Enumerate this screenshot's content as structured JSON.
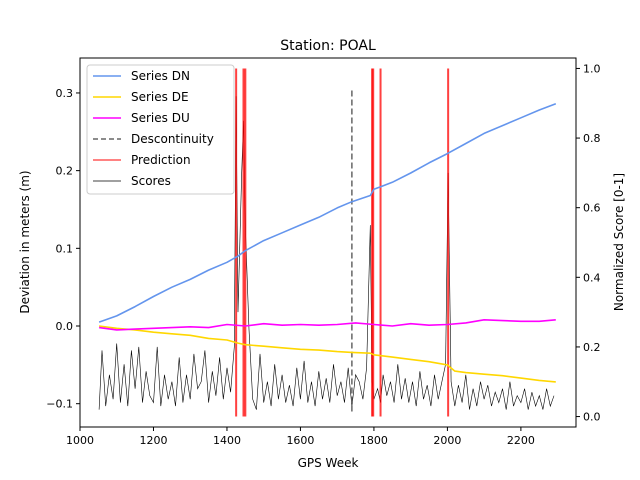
{
  "chart_data": {
    "type": "line",
    "title": "Station: POAL",
    "xlabel": "GPS Week",
    "ylabel": "Deviation in meters (m)",
    "y2label": "Normalized Score [0-1]",
    "xlim": [
      1000,
      2350
    ],
    "ylim": [
      -0.13,
      0.345
    ],
    "y2lim": [
      -0.03,
      1.03
    ],
    "xticks": [
      1000,
      1200,
      1400,
      1600,
      1800,
      2000,
      2200
    ],
    "yticks": [
      -0.1,
      0.0,
      0.1,
      0.2,
      0.3
    ],
    "y2ticks": [
      0.0,
      0.2,
      0.4,
      0.6,
      0.8,
      1.0
    ],
    "xtick_labels": [
      "1000",
      "1200",
      "1400",
      "1600",
      "1800",
      "2000",
      "2200"
    ],
    "ytick_labels": [
      "−0.1",
      "0.0",
      "0.1",
      "0.2",
      "0.3"
    ],
    "y2tick_labels": [
      "0.0",
      "0.2",
      "0.4",
      "0.6",
      "0.8",
      "1.0"
    ],
    "legend_placement": "upper-left",
    "grid": false,
    "series": [
      {
        "name": "Series DN",
        "color": "#6495ed",
        "axis": "left",
        "x": [
          1052,
          1100,
          1150,
          1200,
          1250,
          1300,
          1350,
          1400,
          1430,
          1450,
          1500,
          1550,
          1600,
          1650,
          1700,
          1740,
          1790,
          1800,
          1850,
          1900,
          1950,
          2000,
          2050,
          2100,
          2150,
          2200,
          2250,
          2295
        ],
        "values": [
          0.005,
          0.013,
          0.025,
          0.038,
          0.05,
          0.06,
          0.072,
          0.082,
          0.09,
          0.097,
          0.11,
          0.12,
          0.13,
          0.14,
          0.152,
          0.16,
          0.168,
          0.176,
          0.185,
          0.197,
          0.21,
          0.222,
          0.235,
          0.248,
          0.258,
          0.268,
          0.278,
          0.286
        ]
      },
      {
        "name": "Series DE",
        "color": "#ffd700",
        "axis": "left",
        "x": [
          1052,
          1100,
          1150,
          1200,
          1250,
          1300,
          1350,
          1400,
          1430,
          1450,
          1500,
          1550,
          1600,
          1650,
          1700,
          1740,
          1790,
          1800,
          1850,
          1900,
          1950,
          2000,
          2020,
          2050,
          2100,
          2150,
          2200,
          2250,
          2295
        ],
        "values": [
          0.0,
          -0.003,
          -0.005,
          -0.008,
          -0.01,
          -0.012,
          -0.016,
          -0.018,
          -0.022,
          -0.024,
          -0.026,
          -0.028,
          -0.03,
          -0.031,
          -0.033,
          -0.034,
          -0.035,
          -0.037,
          -0.04,
          -0.043,
          -0.046,
          -0.05,
          -0.058,
          -0.06,
          -0.062,
          -0.064,
          -0.067,
          -0.07,
          -0.072
        ]
      },
      {
        "name": "Series DU",
        "color": "#ff00ff",
        "axis": "left",
        "x": [
          1052,
          1100,
          1150,
          1200,
          1250,
          1300,
          1350,
          1400,
          1450,
          1500,
          1550,
          1600,
          1650,
          1700,
          1750,
          1800,
          1850,
          1900,
          1950,
          2000,
          2050,
          2100,
          2150,
          2200,
          2250,
          2295
        ],
        "values": [
          -0.002,
          -0.005,
          -0.004,
          -0.003,
          -0.002,
          -0.001,
          -0.002,
          0.002,
          0.0,
          0.003,
          0.001,
          0.002,
          0.001,
          0.002,
          0.004,
          0.002,
          0.0,
          0.003,
          0.001,
          0.002,
          0.004,
          0.008,
          0.007,
          0.006,
          0.006,
          0.008
        ]
      },
      {
        "name": "Descontinuity",
        "color": "#666666",
        "axis": "left",
        "style": "dashed",
        "x": [
          1740
        ],
        "values": [
          0.305
        ]
      },
      {
        "name": "Prediction",
        "color": "#ff0000",
        "axis": "right",
        "x": [
          1425,
          1445,
          1450,
          1795,
          1798,
          1818,
          2002
        ],
        "values": [
          1.0,
          1.0,
          1.0,
          1.0,
          1.0,
          1.0,
          1.0
        ]
      },
      {
        "name": "Scores",
        "color": "#000000",
        "axis": "right",
        "x": [
          1052,
          1060,
          1070,
          1080,
          1090,
          1100,
          1110,
          1120,
          1130,
          1140,
          1150,
          1160,
          1170,
          1180,
          1190,
          1200,
          1210,
          1220,
          1230,
          1240,
          1250,
          1260,
          1270,
          1280,
          1290,
          1300,
          1310,
          1320,
          1330,
          1340,
          1350,
          1360,
          1370,
          1380,
          1390,
          1400,
          1410,
          1420,
          1425,
          1430,
          1440,
          1445,
          1450,
          1460,
          1470,
          1480,
          1490,
          1500,
          1510,
          1520,
          1530,
          1540,
          1550,
          1560,
          1570,
          1580,
          1590,
          1600,
          1610,
          1620,
          1630,
          1640,
          1650,
          1660,
          1670,
          1680,
          1690,
          1700,
          1710,
          1720,
          1730,
          1740,
          1750,
          1760,
          1770,
          1780,
          1790,
          1795,
          1800,
          1810,
          1818,
          1825,
          1835,
          1845,
          1855,
          1865,
          1875,
          1885,
          1895,
          1905,
          1915,
          1925,
          1935,
          1945,
          1955,
          1965,
          1975,
          1985,
          1995,
          2002,
          2010,
          2020,
          2030,
          2040,
          2050,
          2060,
          2070,
          2080,
          2090,
          2100,
          2110,
          2120,
          2130,
          2140,
          2150,
          2160,
          2170,
          2180,
          2190,
          2200,
          2210,
          2220,
          2230,
          2240,
          2250,
          2260,
          2270,
          2280,
          2290
        ],
        "values": [
          0.02,
          0.19,
          0.03,
          0.12,
          0.05,
          0.21,
          0.04,
          0.15,
          0.03,
          0.19,
          0.08,
          0.2,
          0.04,
          0.13,
          0.06,
          0.04,
          0.2,
          0.03,
          0.12,
          0.05,
          0.1,
          0.03,
          0.17,
          0.04,
          0.12,
          0.05,
          0.18,
          0.08,
          0.1,
          0.19,
          0.04,
          0.13,
          0.06,
          0.17,
          0.05,
          0.14,
          0.07,
          0.2,
          0.92,
          0.3,
          0.7,
          0.85,
          0.55,
          0.25,
          0.05,
          0.02,
          0.18,
          0.04,
          0.1,
          0.03,
          0.15,
          0.05,
          0.12,
          0.04,
          0.09,
          0.03,
          0.14,
          0.05,
          0.16,
          0.04,
          0.1,
          0.03,
          0.13,
          0.05,
          0.11,
          0.04,
          0.15,
          0.06,
          0.1,
          0.04,
          0.14,
          0.03,
          0.12,
          0.1,
          0.05,
          0.14,
          0.55,
          0.1,
          0.05,
          0.08,
          0.04,
          0.12,
          0.06,
          0.1,
          0.04,
          0.15,
          0.05,
          0.11,
          0.04,
          0.1,
          0.03,
          0.13,
          0.05,
          0.09,
          0.03,
          0.12,
          0.05,
          0.1,
          0.15,
          0.7,
          0.1,
          0.03,
          0.09,
          0.04,
          0.12,
          0.02,
          0.08,
          0.03,
          0.1,
          0.05,
          0.09,
          0.03,
          0.07,
          0.04,
          0.08,
          0.02,
          0.1,
          0.03,
          0.06,
          0.04,
          0.08,
          0.02,
          0.07,
          0.03,
          0.06,
          0.02,
          0.08,
          0.03,
          0.06
        ]
      }
    ]
  }
}
